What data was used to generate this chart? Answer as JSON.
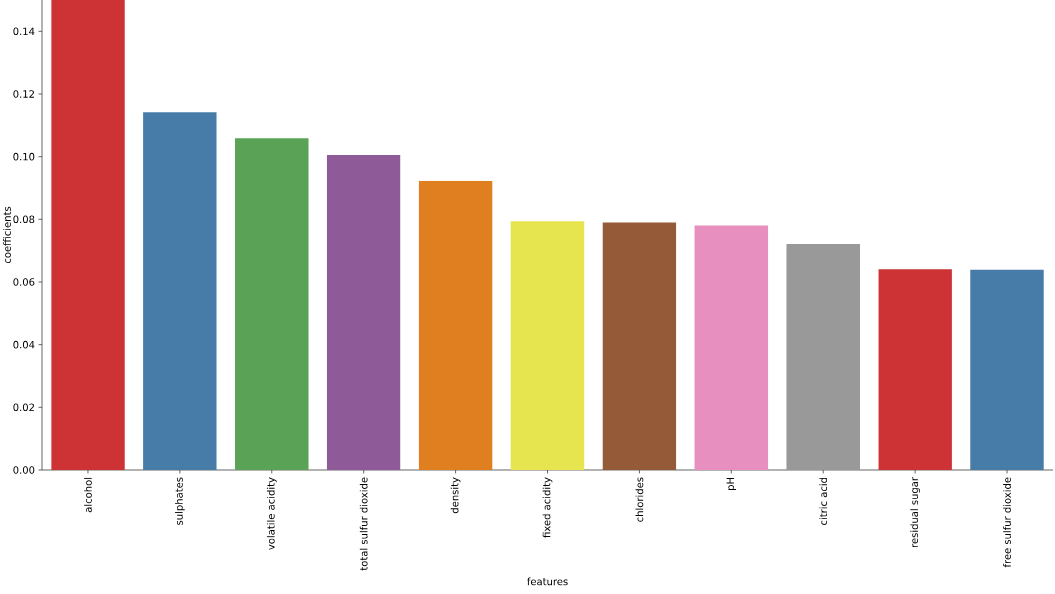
{
  "chart_data": {
    "type": "bar",
    "xlabel": "features",
    "ylabel": "coefficients",
    "categories": [
      "alcohol",
      "sulphates",
      "volatile acidity",
      "total sulfur dioxide",
      "density",
      "fixed acidity",
      "chlorides",
      "pH",
      "citric acid",
      "residual sugar",
      "free sulfur dioxide"
    ],
    "values": [
      0.15,
      0.1142,
      0.1059,
      0.1005,
      0.0923,
      0.0794,
      0.079,
      0.078,
      0.0721,
      0.0641,
      0.0639
    ],
    "colors": [
      "#cd3335",
      "#477ca8",
      "#5aa356",
      "#8f5a98",
      "#df7f20",
      "#e6e54f",
      "#955b39",
      "#e78fbf",
      "#999999",
      "#cd3335",
      "#477ca8"
    ],
    "ylim": [
      0,
      0.15
    ],
    "yticks": [
      {
        "value": 0,
        "label": "0.00"
      },
      {
        "value": 0.02,
        "label": "0.02"
      },
      {
        "value": 0.04,
        "label": "0.04"
      },
      {
        "value": 0.06,
        "label": "0.06"
      },
      {
        "value": 0.08,
        "label": "0.08"
      },
      {
        "value": 0.1,
        "label": "0.10"
      },
      {
        "value": 0.12,
        "label": "0.12"
      },
      {
        "value": 0.14,
        "label": "0.14"
      }
    ]
  }
}
